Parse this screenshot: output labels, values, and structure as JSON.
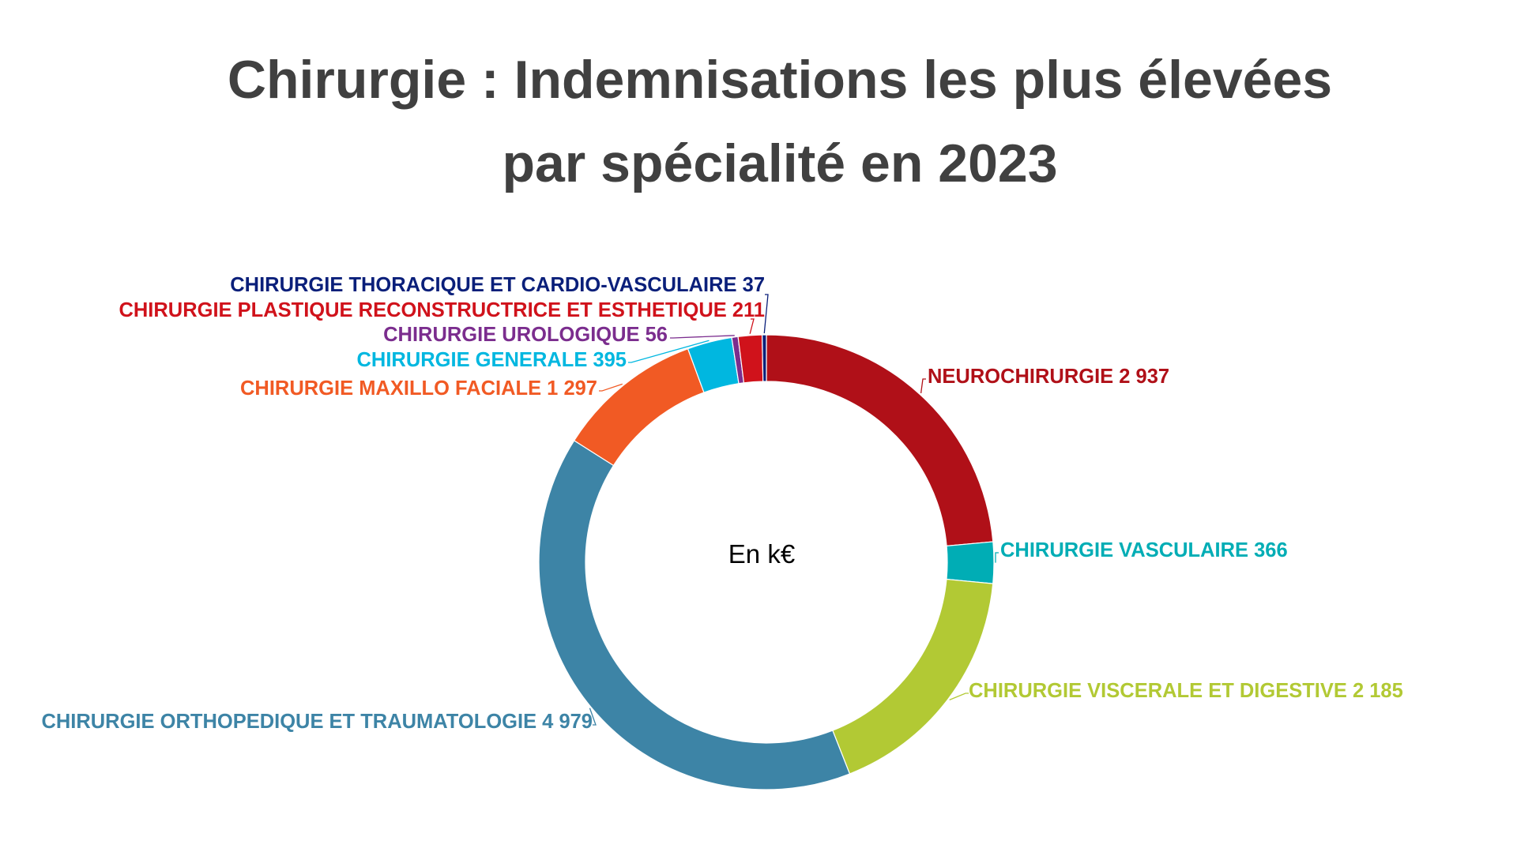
{
  "chart_data": {
    "type": "pie",
    "variant": "donut",
    "title_lines": [
      "Chirurgie : Indemnisations les plus élevées",
      "par spécialité en 2023"
    ],
    "center_label": "En k€",
    "slices": [
      {
        "name": "NEUROCHIRURGIE",
        "value": 2937,
        "display": "2 937",
        "color": "#b01018"
      },
      {
        "name": "CHIRURGIE VASCULAIRE",
        "value": 366,
        "display": "366",
        "color": "#00adb5"
      },
      {
        "name": "CHIRURGIE VISCERALE ET DIGESTIVE",
        "value": 2185,
        "display": "2 185",
        "color": "#b2c934"
      },
      {
        "name": "CHIRURGIE ORTHOPEDIQUE ET TRAUMATOLOGIE",
        "value": 4979,
        "display": "4 979",
        "color": "#3d84a6"
      },
      {
        "name": "CHIRURGIE MAXILLO FACIALE",
        "value": 1297,
        "display": "1 297",
        "color": "#f15a24"
      },
      {
        "name": "CHIRURGIE GENERALE",
        "value": 395,
        "display": "395",
        "color": "#00b7e0"
      },
      {
        "name": "CHIRURGIE UROLOGIQUE",
        "value": 56,
        "display": "56",
        "color": "#7b2d8e"
      },
      {
        "name": "CHIRURGIE PLASTIQUE RECONSTRUCTRICE ET ESTHETIQUE",
        "value": 211,
        "display": "211",
        "color": "#d0121b"
      },
      {
        "name": "CHIRURGIE THORACIQUE ET CARDIO-VASCULAIRE",
        "value": 37,
        "display": "37",
        "color": "#0a1f7a"
      }
    ]
  }
}
